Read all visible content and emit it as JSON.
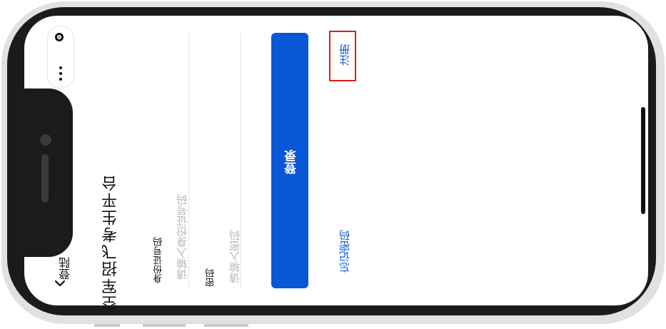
{
  "nav": {
    "back_label": "登陆"
  },
  "page": {
    "title": "空军招飞考生平台"
  },
  "form": {
    "id_label": "身份证号码",
    "id_placeholder": "请输入身份证号码",
    "password_label": "密码",
    "password_placeholder": "请输入密码"
  },
  "actions": {
    "login_label": "登录",
    "register_label": "注册",
    "forgot_label": "忘记密码"
  },
  "icons": {
    "capsule_target": "target-icon",
    "capsule_more": "more-dots-icon",
    "back": "chevron-left-icon"
  },
  "colors": {
    "primary": "#0a57d8",
    "highlight_border": "#d62020",
    "placeholder": "#b7b7b7"
  }
}
